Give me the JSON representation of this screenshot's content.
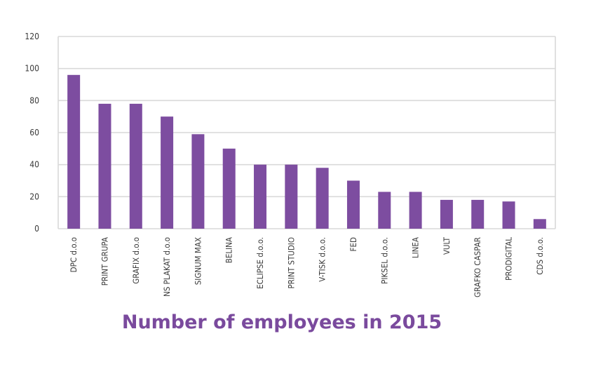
{
  "chart_data": {
    "type": "bar",
    "title": "Number of employees in 2015",
    "categories": [
      "DPC d.o.o",
      "PRINT GRUPA",
      "GRAFIX d.o.o",
      "NS PLAKAT d.o.o",
      "SIGNUM MAX",
      "BELINA",
      "ECLIPSE d.o.o.",
      "PRINT STUDIO",
      "V-TISK d.o.o.",
      "FED",
      "PIKSEL d.o.o.",
      "LINEA",
      "VULT",
      "GRAFKO CASPAR",
      "PRODIGITAL",
      "CDS d.o.o."
    ],
    "values": [
      96,
      78,
      78,
      70,
      59,
      50,
      40,
      40,
      38,
      30,
      23,
      23,
      18,
      18,
      17,
      6
    ],
    "yticks": [
      "0",
      "20",
      "40",
      "60",
      "80",
      "100",
      "120"
    ],
    "ylim": [
      0,
      120
    ],
    "xlabel": "",
    "ylabel": "",
    "grid": true,
    "bar_color": "#7d4da0",
    "grid_color": "#d9d9d9",
    "title_color": "#7a4a9d"
  }
}
